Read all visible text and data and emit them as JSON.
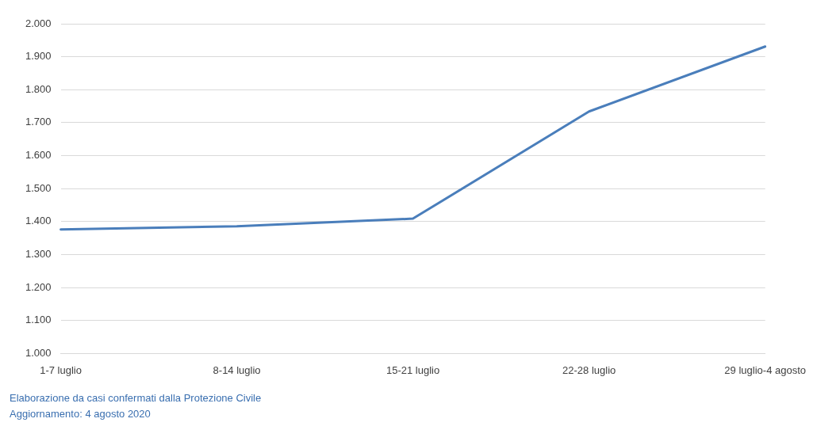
{
  "chart_data": {
    "type": "line",
    "categories": [
      "1-7 luglio",
      "8-14 luglio",
      "15-21 luglio",
      "22-28 luglio",
      "29 luglio-4 agosto"
    ],
    "series": [
      {
        "color": "#4a7ebb",
        "values": [
          1376,
          1386,
          1409,
          1734,
          1931
        ]
      }
    ],
    "ylim": [
      1000,
      2000
    ],
    "yticks": [
      {
        "value": 1000,
        "label": "1.000"
      },
      {
        "value": 1100,
        "label": "1.100"
      },
      {
        "value": 1200,
        "label": "1.200"
      },
      {
        "value": 1300,
        "label": "1.300"
      },
      {
        "value": 1400,
        "label": "1.400"
      },
      {
        "value": 1500,
        "label": "1.500"
      },
      {
        "value": 1600,
        "label": "1.600"
      },
      {
        "value": 1700,
        "label": "1.700"
      },
      {
        "value": 1800,
        "label": "1.800"
      },
      {
        "value": 1900,
        "label": "1.900"
      },
      {
        "value": 2000,
        "label": "2.000"
      }
    ],
    "grid": "y",
    "legend": false,
    "marker": "none",
    "line_style": "solid",
    "annotations": [
      "Elaborazione da casi confermati dalla Protezione Civile",
      "Aggiornamento: 4 agosto 2020"
    ]
  }
}
